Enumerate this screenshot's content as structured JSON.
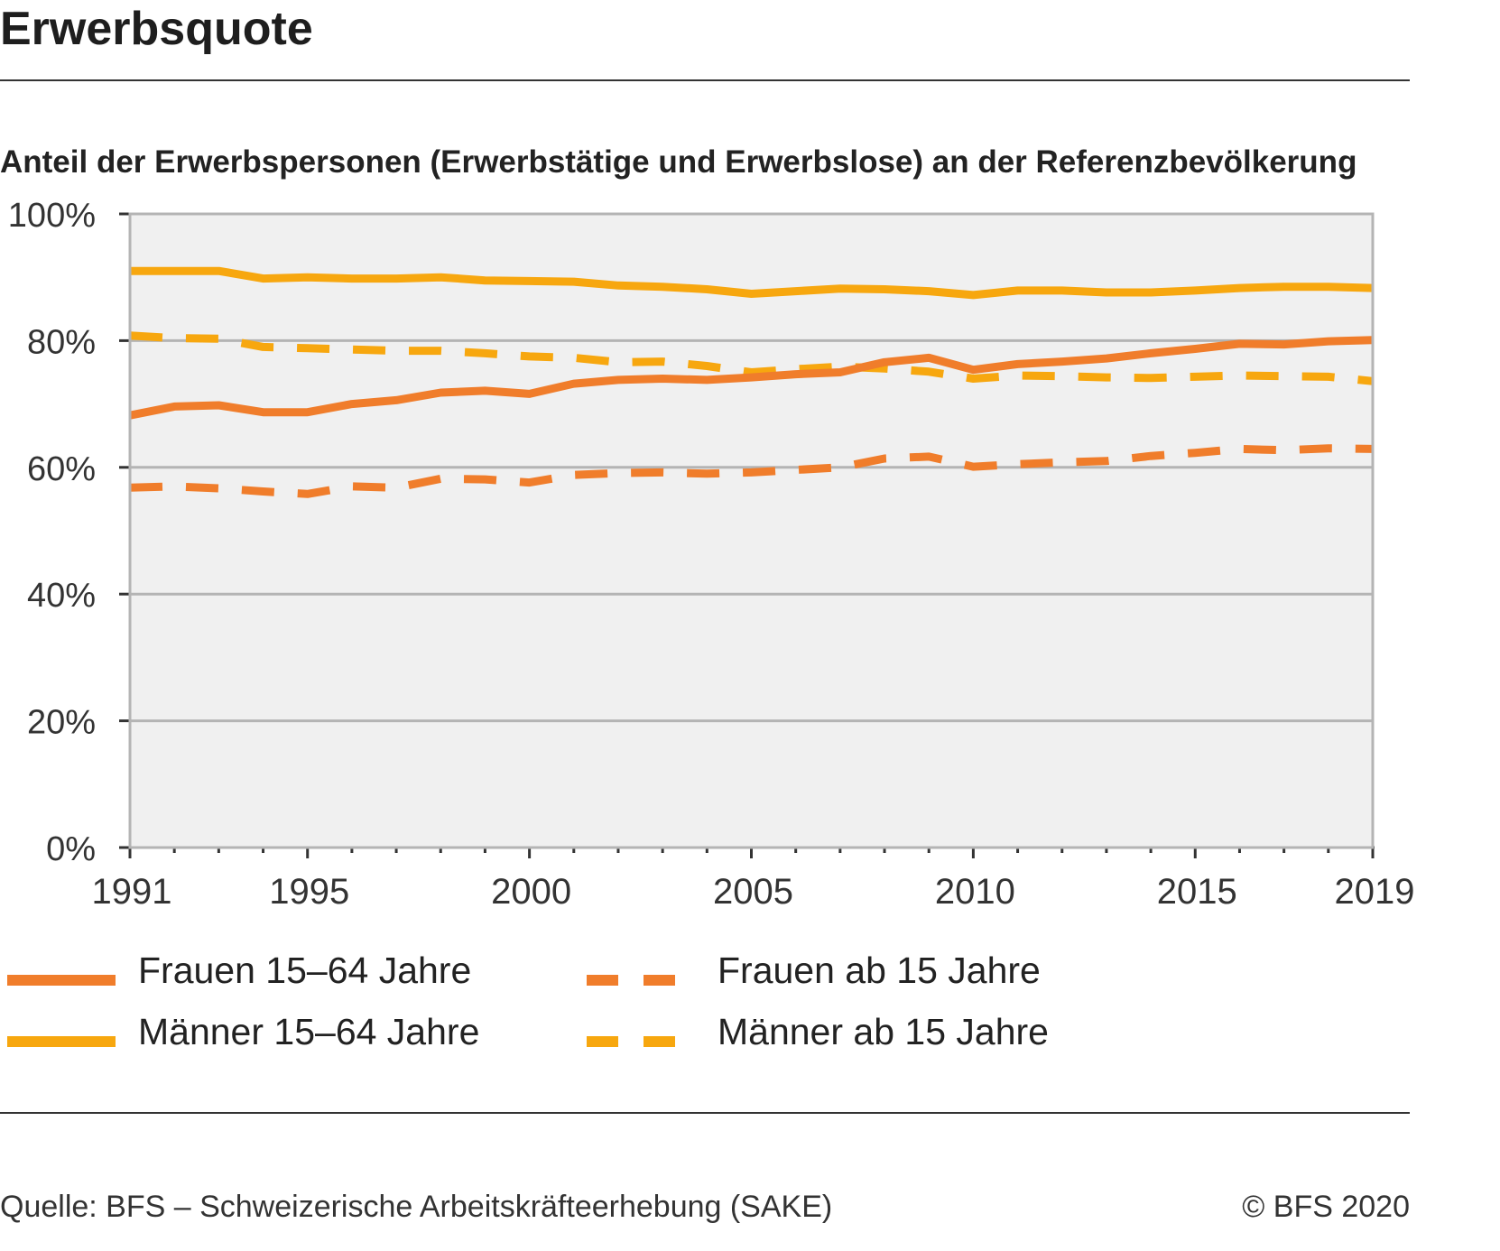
{
  "title": "Erwerbsquote",
  "subtitle": "Anteil der Erwerbspersonen (Erwerbstätige und Erwerbslose) an der Referenzbevölkerung",
  "source": "Quelle: BFS – Schweizerische Arbeitskräfteerhebung (SAKE)",
  "copyright": "© BFS 2020",
  "colors": {
    "frauen": "#F07D2B",
    "maenner": "#F7A70F",
    "plot_bg": "#F0F0F0",
    "grid": "#B4B4B4"
  },
  "chart_data": {
    "type": "line",
    "title": "Erwerbsquote",
    "xlabel": "",
    "ylabel": "",
    "xlim": [
      1991,
      2019
    ],
    "ylim": [
      0,
      100
    ],
    "y_ticks": [
      "0%",
      "20%",
      "40%",
      "60%",
      "80%",
      "100%"
    ],
    "x_ticks": [
      "1991",
      "1995",
      "2000",
      "2005",
      "2010",
      "2015",
      "2019"
    ],
    "grid": true,
    "legend_position": "bottom",
    "x": [
      1991,
      1992,
      1993,
      1994,
      1995,
      1996,
      1997,
      1998,
      1999,
      2000,
      2001,
      2002,
      2003,
      2004,
      2005,
      2006,
      2007,
      2008,
      2009,
      2010,
      2011,
      2012,
      2013,
      2014,
      2015,
      2016,
      2017,
      2018,
      2019
    ],
    "series": [
      {
        "name": "Frauen 15–64 Jahre",
        "color": "#F07D2B",
        "dash": false,
        "values": [
          68.2,
          69.6,
          69.8,
          68.7,
          68.7,
          70.0,
          70.6,
          71.8,
          72.1,
          71.6,
          73.2,
          73.8,
          74.0,
          73.8,
          74.2,
          74.7,
          75.0,
          76.6,
          77.3,
          75.4,
          76.3,
          76.7,
          77.2,
          78.0,
          78.7,
          79.5,
          79.4,
          79.9,
          80.1
        ]
      },
      {
        "name": "Männer 15–64 Jahre",
        "color": "#F7A70F",
        "dash": false,
        "values": [
          91.0,
          91.0,
          91.0,
          89.8,
          90.0,
          89.8,
          89.8,
          90.0,
          89.5,
          89.4,
          89.3,
          88.7,
          88.5,
          88.1,
          87.4,
          87.8,
          88.2,
          88.1,
          87.8,
          87.2,
          87.9,
          87.9,
          87.6,
          87.6,
          87.9,
          88.3,
          88.5,
          88.5,
          88.3
        ]
      },
      {
        "name": "Frauen ab 15 Jahre",
        "color": "#F07D2B",
        "dash": true,
        "values": [
          56.8,
          57.0,
          56.7,
          56.2,
          55.8,
          57.0,
          56.8,
          58.2,
          58.1,
          57.6,
          58.8,
          59.1,
          59.2,
          59.0,
          59.2,
          59.6,
          60.0,
          61.4,
          61.7,
          60.1,
          60.5,
          60.8,
          61.0,
          61.8,
          62.3,
          62.9,
          62.7,
          63.0,
          62.9
        ]
      },
      {
        "name": "Männer ab 15 Jahre",
        "color": "#F7A70F",
        "dash": true,
        "values": [
          80.8,
          80.4,
          80.3,
          79.0,
          78.8,
          78.6,
          78.4,
          78.4,
          78.0,
          77.5,
          77.3,
          76.6,
          76.7,
          76.0,
          75.0,
          75.5,
          75.9,
          75.6,
          75.1,
          74.0,
          74.5,
          74.4,
          74.2,
          74.1,
          74.3,
          74.5,
          74.4,
          74.3,
          73.6
        ]
      }
    ]
  }
}
